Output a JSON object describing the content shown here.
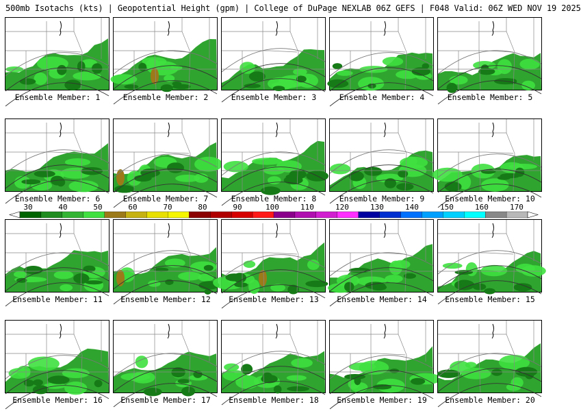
{
  "header": {
    "title": "500mb Isotachs (kts) | Geopotential Height (gpm) | College of DuPage NEXLAB   06Z GEFS | F048 Valid: 06Z WED NOV 19 2025"
  },
  "panels": [
    {
      "label": "Ensemble Member: 1"
    },
    {
      "label": "Ensemble Member: 2"
    },
    {
      "label": "Ensemble Member: 3"
    },
    {
      "label": "Ensemble Member: 4"
    },
    {
      "label": "Ensemble Member: 5"
    },
    {
      "label": "Ensemble Member: 6"
    },
    {
      "label": "Ensemble Member: 7"
    },
    {
      "label": "Ensemble Member: 8"
    },
    {
      "label": "Ensemble Member: 9"
    },
    {
      "label": "Ensemble Member: 10"
    },
    {
      "label": "Ensemble Member: 11"
    },
    {
      "label": "Ensemble Member: 12"
    },
    {
      "label": "Ensemble Member: 13"
    },
    {
      "label": "Ensemble Member: 14"
    },
    {
      "label": "Ensemble Member: 15"
    },
    {
      "label": "Ensemble Member: 16"
    },
    {
      "label": "Ensemble Member: 17"
    },
    {
      "label": "Ensemble Member: 18"
    },
    {
      "label": "Ensemble Member: 19"
    },
    {
      "label": "Ensemble Member: 20"
    }
  ],
  "colorbar": {
    "ticks": [
      "30",
      "40",
      "50",
      "60",
      "70",
      "80",
      "90",
      "100",
      "110",
      "120",
      "130",
      "140",
      "150",
      "160",
      "170"
    ],
    "colors": [
      "#006400",
      "#1e8c1e",
      "#33b533",
      "#3fe03f",
      "#9c7a1a",
      "#c7b213",
      "#e8e000",
      "#f5f500",
      "#8b0000",
      "#b00000",
      "#d60000",
      "#ff1a1a",
      "#8b008b",
      "#b010b0",
      "#d020d0",
      "#ff30ff",
      "#0000a0",
      "#0030d0",
      "#0070ff",
      "#00a0ff",
      "#00d0ff",
      "#00ffff",
      "#888888",
      "#b8b8b8"
    ]
  }
}
